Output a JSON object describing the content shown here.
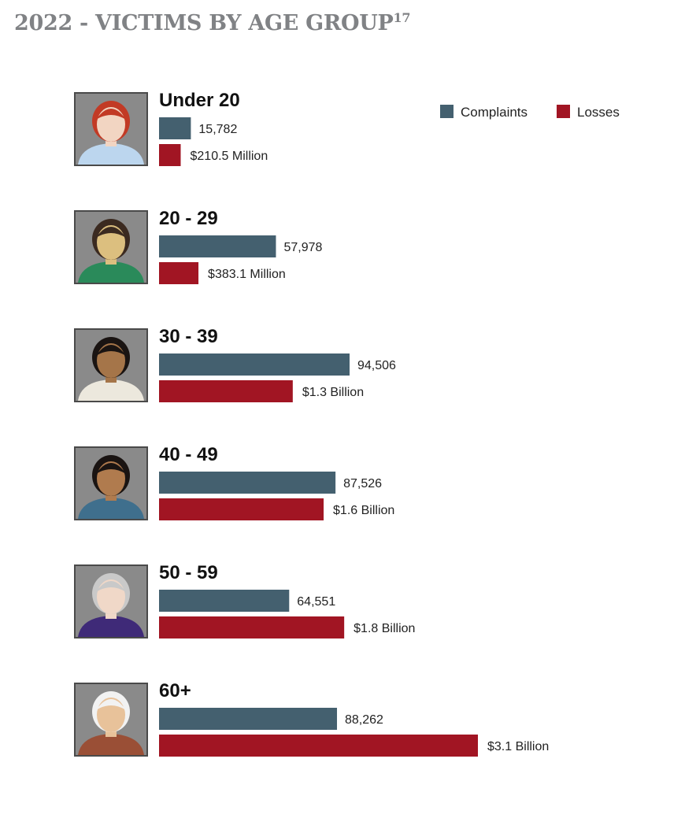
{
  "title": "2022 - VICTIMS BY AGE GROUP",
  "title_note": "17",
  "colors": {
    "complaints": "#44606f",
    "losses": "#a11523"
  },
  "chart_data": {
    "type": "bar",
    "orientation": "horizontal",
    "categories": [
      "Under 20",
      "20 - 29",
      "30 - 39",
      "40 - 49",
      "50 - 59",
      "60+"
    ],
    "series": [
      {
        "name": "Complaints",
        "values": [
          15782,
          57978,
          94506,
          87526,
          64551,
          88262
        ],
        "labels": [
          "15,782",
          "57,978",
          "94,506",
          "87,526",
          "64,551",
          "88,262"
        ]
      },
      {
        "name": "Losses",
        "values": [
          210.5,
          383.1,
          1300,
          1600,
          1800,
          3100
        ],
        "unit": "million USD",
        "labels": [
          "$210.5 Million",
          "$383.1 Million",
          "$1.3 Billion",
          "$1.6 Billion",
          "$1.8 Billion",
          "$3.1 Billion"
        ]
      }
    ],
    "legend_position": "top-right",
    "grid": false
  },
  "avatars": [
    {
      "icon": "avatar-under-20-icon",
      "hair": "#c23a25",
      "skin": "#f2d5c2",
      "shirt": "#bcd6ee"
    },
    {
      "icon": "avatar-20-29-icon",
      "hair": "#3b2a20",
      "skin": "#dcbf7f",
      "shirt": "#2a8a5a"
    },
    {
      "icon": "avatar-30-39-icon",
      "hair": "#1a1412",
      "skin": "#a57549",
      "shirt": "#ece8dd"
    },
    {
      "icon": "avatar-40-49-icon",
      "hair": "#1a1412",
      "skin": "#b07b4e",
      "shirt": "#3f6f8d"
    },
    {
      "icon": "avatar-50-59-icon",
      "hair": "#c9c9c9",
      "skin": "#f0d8c8",
      "shirt": "#3f2a78"
    },
    {
      "icon": "avatar-60-plus-icon",
      "hair": "#f2f2f2",
      "skin": "#e8c29a",
      "shirt": "#9a4f36"
    }
  ]
}
